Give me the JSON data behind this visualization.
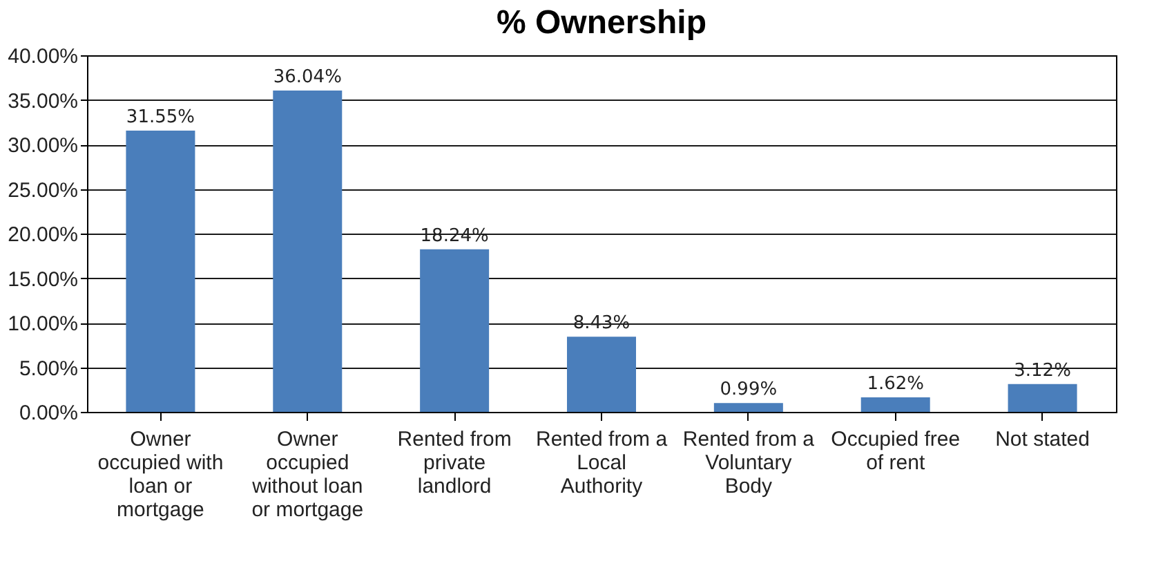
{
  "chart_data": {
    "type": "bar",
    "title": "% Ownership",
    "categories": [
      "Owner occupied with loan or mortgage",
      "Owner occupied without loan or mortgage",
      "Rented from private landlord",
      "Rented from a Local Authority",
      "Rented from a Voluntary Body",
      "Occupied free of rent",
      "Not stated"
    ],
    "values": [
      31.55,
      36.04,
      18.24,
      8.43,
      0.99,
      1.62,
      3.12
    ],
    "value_labels": [
      "31.55%",
      "36.04%",
      "18.24%",
      "8.43%",
      "0.99%",
      "1.62%",
      "3.12%"
    ],
    "color": "#4a7ebb",
    "ylim": [
      0,
      40
    ],
    "yticks": [
      {
        "value": 0,
        "label": "0.00%"
      },
      {
        "value": 5,
        "label": "5.00%"
      },
      {
        "value": 10,
        "label": "10.00%"
      },
      {
        "value": 15,
        "label": "15.00%"
      },
      {
        "value": 20,
        "label": "20.00%"
      },
      {
        "value": 25,
        "label": "25.00%"
      },
      {
        "value": 30,
        "label": "30.00%"
      },
      {
        "value": 35,
        "label": "35.00%"
      },
      {
        "value": 40,
        "label": "40.00%"
      }
    ],
    "grid": "y"
  }
}
